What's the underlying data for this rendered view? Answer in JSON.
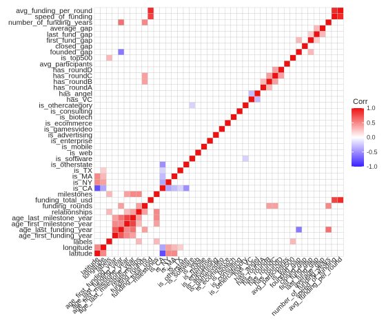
{
  "chart_data": {
    "type": "heatmap",
    "title": "",
    "xlabel": "",
    "ylabel": "",
    "variables": [
      "latitude",
      "longitude",
      "labels",
      "age_first_funding_year",
      "age_last_funding_year",
      "age_first_milestone_year",
      "age_last_milestone_year",
      "relationships",
      "funding_rounds",
      "funding_total_usd",
      "milestones",
      "is_CA",
      "is_NY",
      "is_MA",
      "is_TX",
      "is_otherstate",
      "is_software",
      "is_web",
      "is_mobile",
      "is_enterprise",
      "is_advertising",
      "is_gamesvideo",
      "is_ecommerce",
      "is_biotech",
      "is_consulting",
      "is_othercategory",
      "has_VC",
      "has_angel",
      "has_roundA",
      "has_roundB",
      "has_roundC",
      "has_roundD",
      "avg_participants",
      "is_top500",
      "founded_gap",
      "closed_gap",
      "first_fund_gap",
      "last_fund_gap",
      "average_gap",
      "number_of_funding_years",
      "speed_of_funding",
      "avg_funding_per_round"
    ],
    "strong_correlations": [
      {
        "a": "latitude",
        "b": "longitude",
        "value": 0.5
      },
      {
        "a": "latitude",
        "b": "is_CA",
        "value": -0.8
      },
      {
        "a": "latitude",
        "b": "is_NY",
        "value": 0.5
      },
      {
        "a": "latitude",
        "b": "is_MA",
        "value": 0.5
      },
      {
        "a": "longitude",
        "b": "is_CA",
        "value": -0.4
      },
      {
        "a": "longitude",
        "b": "is_NY",
        "value": 0.4
      },
      {
        "a": "longitude",
        "b": "is_MA",
        "value": 0.3
      },
      {
        "a": "longitude",
        "b": "is_TX",
        "value": 0.2
      },
      {
        "a": "age_first_funding_year",
        "b": "age_last_funding_year",
        "value": 0.7
      },
      {
        "a": "age_first_funding_year",
        "b": "age_first_milestone_year",
        "value": 0.5
      },
      {
        "a": "age_first_funding_year",
        "b": "age_last_milestone_year",
        "value": 0.4
      },
      {
        "a": "age_last_funding_year",
        "b": "age_first_milestone_year",
        "value": 0.5
      },
      {
        "a": "age_last_funding_year",
        "b": "age_last_milestone_year",
        "value": 0.6
      },
      {
        "a": "age_last_funding_year",
        "b": "funding_rounds",
        "value": 0.4
      },
      {
        "a": "age_last_funding_year",
        "b": "founded_gap",
        "value": -0.6
      },
      {
        "a": "age_first_milestone_year",
        "b": "age_last_milestone_year",
        "value": 0.8
      },
      {
        "a": "age_first_milestone_year",
        "b": "relationships",
        "value": 0.3
      },
      {
        "a": "age_first_milestone_year",
        "b": "milestones",
        "value": 0.4
      },
      {
        "a": "age_last_milestone_year",
        "b": "relationships",
        "value": 0.4
      },
      {
        "a": "age_last_milestone_year",
        "b": "milestones",
        "value": 0.5
      },
      {
        "a": "relationships",
        "b": "funding_rounds",
        "value": 0.4
      },
      {
        "a": "relationships",
        "b": "milestones",
        "value": 0.5
      },
      {
        "a": "funding_rounds",
        "b": "has_roundB",
        "value": 0.4
      },
      {
        "a": "funding_rounds",
        "b": "has_roundC",
        "value": 0.4
      },
      {
        "a": "funding_total_usd",
        "b": "avg_funding_per_round",
        "value": 0.9
      },
      {
        "a": "funding_total_usd",
        "b": "speed_of_funding",
        "value": 0.8
      },
      {
        "a": "speed_of_funding",
        "b": "avg_funding_per_round",
        "value": 0.9
      },
      {
        "a": "number_of_funding_years",
        "b": "funding_rounds",
        "value": 0.5
      },
      {
        "a": "number_of_funding_years",
        "b": "age_last_funding_year",
        "value": 0.6
      },
      {
        "a": "is_CA",
        "b": "is_NY",
        "value": -0.4
      },
      {
        "a": "is_CA",
        "b": "is_MA",
        "value": -0.3
      },
      {
        "a": "is_CA",
        "b": "is_TX",
        "value": -0.2
      },
      {
        "a": "is_CA",
        "b": "is_otherstate",
        "value": -0.5
      },
      {
        "a": "is_software",
        "b": "is_othercategory",
        "value": -0.2
      },
      {
        "a": "has_VC",
        "b": "has_angel",
        "value": -0.3
      },
      {
        "a": "has_roundA",
        "b": "has_roundB",
        "value": 0.3
      },
      {
        "a": "has_roundB",
        "b": "has_roundC",
        "value": 0.4
      },
      {
        "a": "has_roundC",
        "b": "has_roundD",
        "value": 0.4
      },
      {
        "a": "founded_gap",
        "b": "first_fund_gap",
        "value": 0.3
      },
      {
        "a": "first_fund_gap",
        "b": "last_fund_gap",
        "value": 0.2
      },
      {
        "a": "last_fund_gap",
        "b": "average_gap",
        "value": 0.3
      },
      {
        "a": "labels",
        "b": "milestones",
        "value": 0.3
      },
      {
        "a": "labels",
        "b": "relationships",
        "value": 0.3
      },
      {
        "a": "labels",
        "b": "is_top500",
        "value": 0.3
      }
    ],
    "diagonal_value": 1.0,
    "color_scale": {
      "low": "#3a1fff",
      "mid": "#ffffff",
      "high": "#ee1111",
      "limits": [
        -1,
        1
      ]
    },
    "legend": {
      "title": "Corr",
      "position": "right",
      "ticks": [
        "1.0",
        "0.5",
        "0.0",
        "-0.5",
        "-1.0"
      ],
      "tick_values": [
        1.0,
        0.5,
        0.0,
        -0.5,
        -1.0
      ]
    },
    "grid": true
  }
}
